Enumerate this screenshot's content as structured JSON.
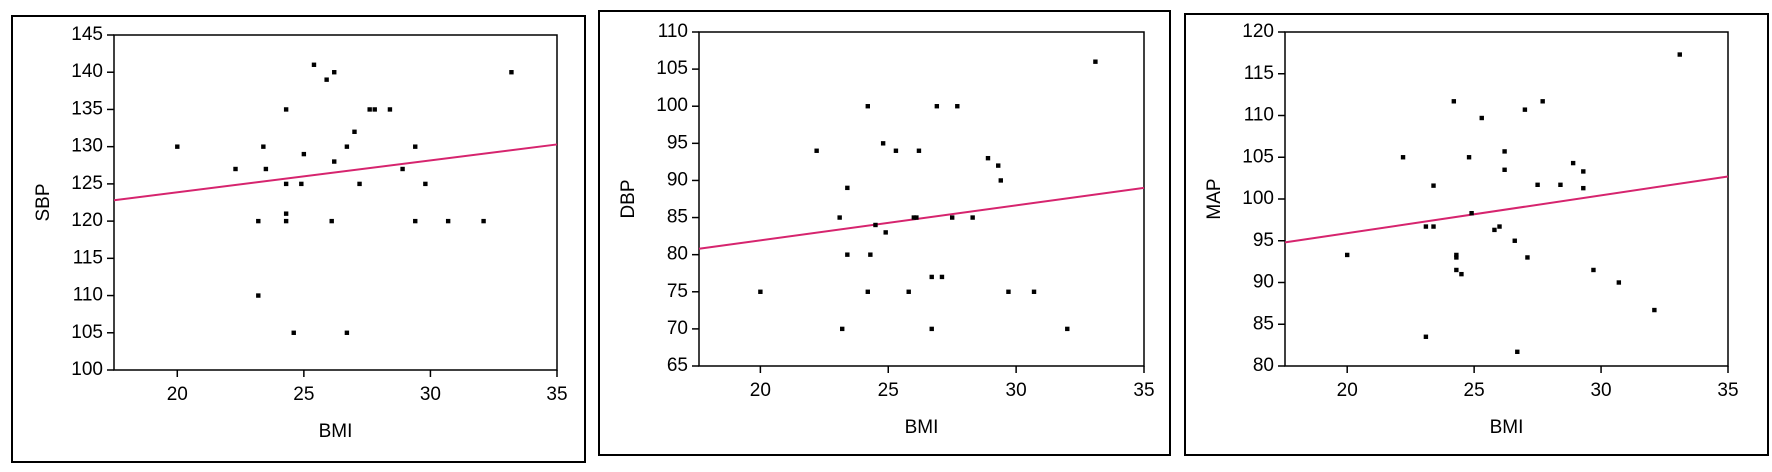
{
  "chart_data": [
    {
      "type": "scatter",
      "xlabel": "BMI",
      "ylabel": "SBP",
      "color": "#000000",
      "x": [
        20,
        22.3,
        23.2,
        23.2,
        23.4,
        23.5,
        24.3,
        24.3,
        24.3,
        24.3,
        24.6,
        24.9,
        25,
        25.4,
        25.9,
        26.1,
        26.2,
        26.2,
        26.7,
        26.7,
        27,
        27.2,
        27.6,
        27.8,
        28.4,
        28.9,
        29.4,
        29.4,
        29.8,
        30.7,
        32.1,
        33.2
      ],
      "y": [
        130,
        127,
        120,
        110,
        130,
        127,
        135,
        125,
        121,
        120,
        105,
        125,
        129,
        141,
        139,
        120,
        140,
        128,
        130,
        105,
        132,
        125,
        135,
        135,
        135,
        127,
        130,
        120,
        125,
        120,
        120,
        140
      ],
      "trend_line": {
        "x": [
          17.5,
          35
        ],
        "y": [
          122.8,
          130.3
        ],
        "color": "#d6246e"
      },
      "xlim": [
        17.5,
        35
      ],
      "xticks": [
        20,
        25,
        30,
        35
      ],
      "ylim": [
        100,
        145
      ],
      "yticks": [
        100,
        105,
        110,
        115,
        120,
        125,
        130,
        135,
        140,
        145
      ]
    },
    {
      "type": "scatter",
      "xlabel": "BMI",
      "ylabel": "DBP",
      "color": "#000000",
      "x": [
        20,
        22.2,
        23.1,
        23.2,
        23.4,
        23.4,
        24.2,
        24.2,
        24.3,
        24.5,
        24.8,
        24.9,
        25.3,
        25.8,
        26,
        26.1,
        26.2,
        26.7,
        26.7,
        26.9,
        27.1,
        27.5,
        27.7,
        28.3,
        28.9,
        29.3,
        29.4,
        29.7,
        30.7,
        32,
        33.1
      ],
      "y": [
        75,
        94,
        85,
        70,
        80,
        89,
        100,
        75,
        80,
        84,
        95,
        83,
        94,
        75,
        85,
        85,
        94,
        77,
        70,
        100,
        77,
        85,
        100,
        85,
        93,
        92,
        90,
        75,
        75,
        70,
        106
      ],
      "trend_line": {
        "x": [
          17.6,
          35
        ],
        "y": [
          80.8,
          89
        ],
        "color": "#d6246e"
      },
      "xlim": [
        17.6,
        35
      ],
      "xticks": [
        20,
        25,
        30,
        35
      ],
      "ylim": [
        65,
        110
      ],
      "yticks": [
        65,
        70,
        75,
        80,
        85,
        90,
        95,
        100,
        105,
        110
      ]
    },
    {
      "type": "scatter",
      "xlabel": "BMI",
      "ylabel": "MAP",
      "color": "#000000",
      "x": [
        20,
        22.2,
        23.1,
        23.1,
        23.4,
        23.4,
        24.2,
        24.3,
        24.3,
        24.3,
        24.5,
        24.8,
        24.9,
        25.3,
        25.8,
        26,
        26.2,
        26.2,
        26.6,
        26.7,
        27,
        27.1,
        27.5,
        27.7,
        28.4,
        28.9,
        29.3,
        29.3,
        29.7,
        30.7,
        32.1,
        33.1
      ],
      "y": [
        93.3,
        105,
        83.5,
        96.7,
        96.7,
        101.6,
        111.7,
        93.3,
        93,
        91.5,
        91,
        105,
        98.3,
        109.7,
        96.3,
        96.7,
        105.7,
        103.5,
        95,
        81.7,
        110.7,
        93,
        101.7,
        111.7,
        101.7,
        104.3,
        103.3,
        101.3,
        91.5,
        90,
        86.7,
        117.3
      ],
      "trend_line": {
        "x": [
          17.55,
          35
        ],
        "y": [
          94.8,
          102.7
        ],
        "color": "#d6246e"
      },
      "xlim": [
        17.55,
        35
      ],
      "xticks": [
        20,
        25,
        30,
        35
      ],
      "ylim": [
        80,
        120
      ],
      "yticks": [
        80,
        85,
        90,
        95,
        100,
        105,
        110,
        115,
        120
      ]
    }
  ]
}
